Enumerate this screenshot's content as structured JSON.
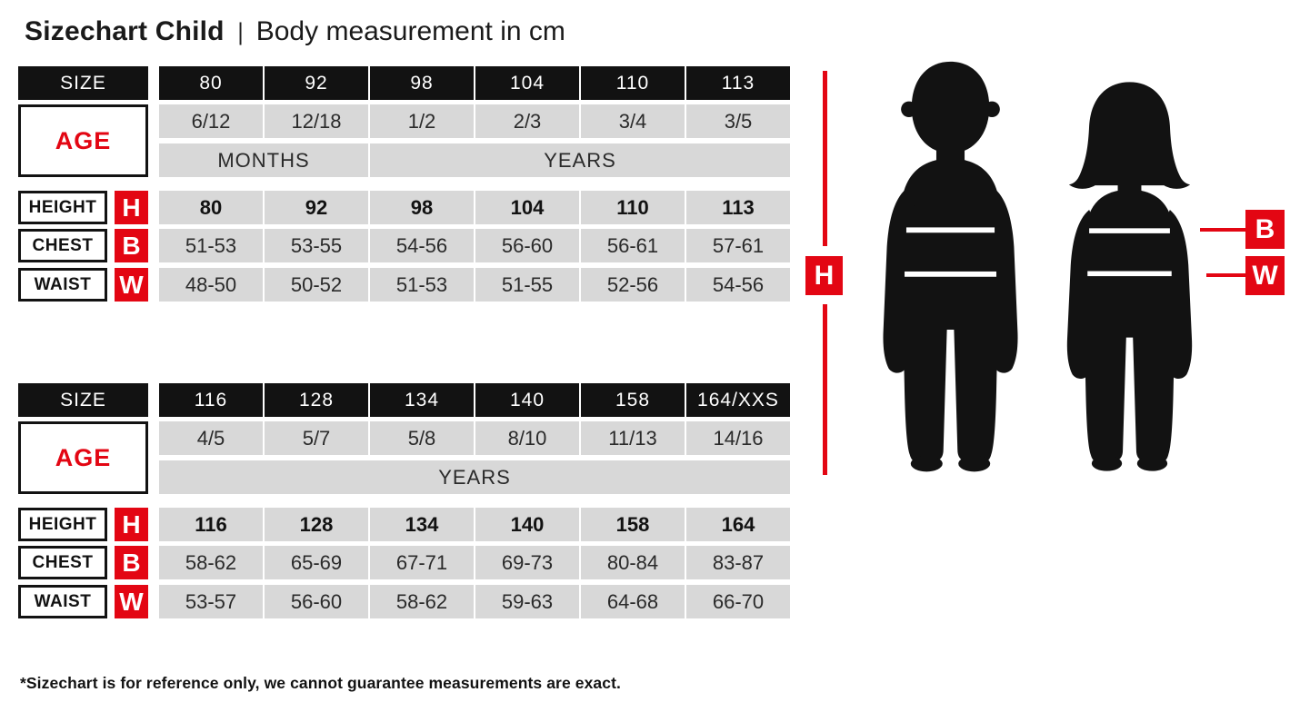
{
  "title": {
    "main": "Sizechart Child",
    "separator": "|",
    "subtitle": "Body measurement in cm"
  },
  "labels": {
    "size": "SIZE",
    "age": "AGE"
  },
  "figure": {
    "height_letter": "H",
    "chest_letter": "B",
    "waist_letter": "W",
    "boy_icon": "boy-child-silhouette",
    "girl_icon": "girl-child-silhouette"
  },
  "colors": {
    "red": "#e30613",
    "black": "#121212",
    "cell_gray": "#d8d8d8",
    "background": "#ffffff"
  },
  "footer": "*Sizechart is for reference only, we cannot guarantee measurements are exact.",
  "chart_data": [
    {
      "type": "table",
      "sizes": [
        "80",
        "92",
        "98",
        "104",
        "110",
        "113"
      ],
      "age": [
        "6/12",
        "12/18",
        "1/2",
        "2/3",
        "3/4",
        "3/5"
      ],
      "age_units": [
        {
          "label": "MONTHS",
          "span": 2
        },
        {
          "label": "YEARS",
          "span": 4
        }
      ],
      "rows": [
        {
          "label": "HEIGHT",
          "letter": "H",
          "bold": true,
          "values": [
            "80",
            "92",
            "98",
            "104",
            "110",
            "113"
          ]
        },
        {
          "label": "CHEST",
          "letter": "B",
          "bold": false,
          "values": [
            "51-53",
            "53-55",
            "54-56",
            "56-60",
            "56-61",
            "57-61"
          ]
        },
        {
          "label": "WAIST",
          "letter": "W",
          "bold": false,
          "values": [
            "48-50",
            "50-52",
            "51-53",
            "51-55",
            "52-56",
            "54-56"
          ]
        }
      ]
    },
    {
      "type": "table",
      "sizes": [
        "116",
        "128",
        "134",
        "140",
        "158",
        "164/XXS"
      ],
      "age": [
        "4/5",
        "5/7",
        "5/8",
        "8/10",
        "11/13",
        "14/16"
      ],
      "age_units": [
        {
          "label": "YEARS",
          "span": 6
        }
      ],
      "rows": [
        {
          "label": "HEIGHT",
          "letter": "H",
          "bold": true,
          "values": [
            "116",
            "128",
            "134",
            "140",
            "158",
            "164"
          ]
        },
        {
          "label": "CHEST",
          "letter": "B",
          "bold": false,
          "values": [
            "58-62",
            "65-69",
            "67-71",
            "69-73",
            "80-84",
            "83-87"
          ]
        },
        {
          "label": "WAIST",
          "letter": "W",
          "bold": false,
          "values": [
            "53-57",
            "56-60",
            "58-62",
            "59-63",
            "64-68",
            "66-70"
          ]
        }
      ]
    }
  ]
}
